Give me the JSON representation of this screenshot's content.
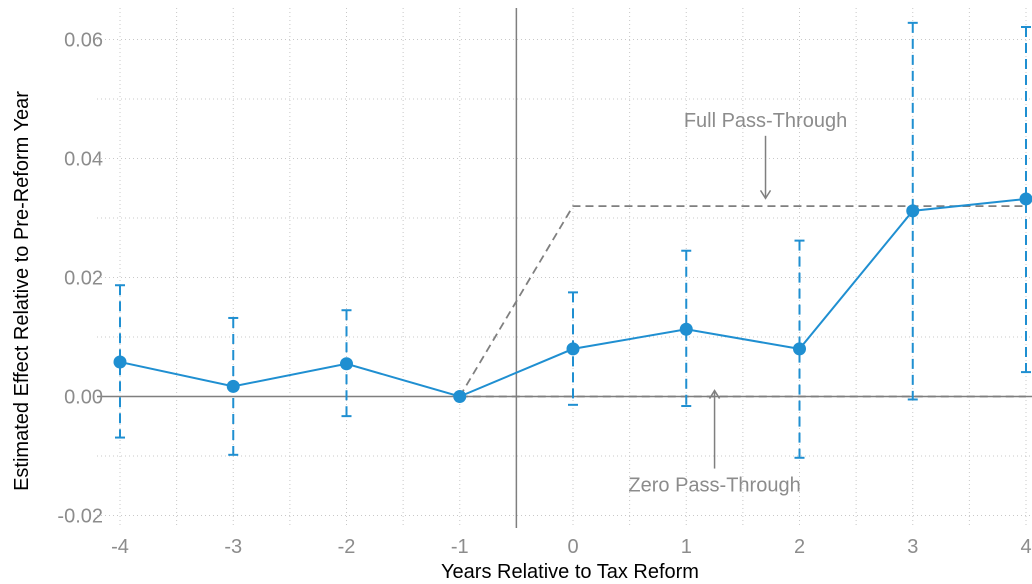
{
  "chart_data": {
    "type": "line",
    "title": "",
    "xlabel": "Years Relative to Tax Reform",
    "ylabel": "Estimated Effect Relative to Pre-Reform Year",
    "x": [
      -4,
      -3,
      -2,
      -1,
      0,
      1,
      2,
      3,
      4
    ],
    "xlim": [
      -4,
      4
    ],
    "ylim": [
      -0.021,
      0.066
    ],
    "xticks": [
      -4,
      -3,
      -2,
      -1,
      0,
      1,
      2,
      3,
      4
    ],
    "xtick_labels": [
      "-4",
      "-3",
      "-2",
      "-1",
      "0",
      "1",
      "2",
      "3",
      "4"
    ],
    "yticks": [
      -0.02,
      0.0,
      0.02,
      0.04,
      0.06
    ],
    "ytick_labels": [
      "-0.02",
      "0.00",
      "0.02",
      "0.04",
      "0.06"
    ],
    "grid": true,
    "vertical_line_at": -0.5,
    "horizontal_line_at": 0,
    "series": [
      {
        "values": [
          0.0058,
          0.0017,
          0.0055,
          0.0,
          0.008,
          0.0113,
          0.008,
          0.0312,
          0.0332
        ],
        "ci_low": [
          -0.0069,
          -0.0098,
          -0.0033,
          0.0,
          -0.0014,
          -0.0016,
          -0.0103,
          -0.0005,
          0.0041
        ],
        "ci_high": [
          0.0187,
          0.0132,
          0.0145,
          0.0,
          0.0175,
          0.0245,
          0.0262,
          0.0628,
          0.0621
        ],
        "color": "#1f8fd1"
      }
    ],
    "reference_lines": [
      {
        "label": "Full Pass-Through",
        "x": [
          -1,
          0,
          4
        ],
        "y": [
          0.0,
          0.032,
          0.032
        ],
        "color": "#7f7f7f",
        "style": "dashed"
      },
      {
        "label": "Zero Pass-Through",
        "x": [
          -1,
          4
        ],
        "y": [
          0.0,
          0.0
        ],
        "color": "#7f7f7f",
        "style": "dashed"
      }
    ],
    "annotations": [
      {
        "text": "Full Pass-Through",
        "x": 1.7,
        "y": 0.0465,
        "arrow_to": [
          1.7,
          0.0333
        ]
      },
      {
        "text": "Zero Pass-Through",
        "x": 1.25,
        "y": -0.0148,
        "arrow_to": [
          1.25,
          0.001
        ]
      }
    ]
  }
}
